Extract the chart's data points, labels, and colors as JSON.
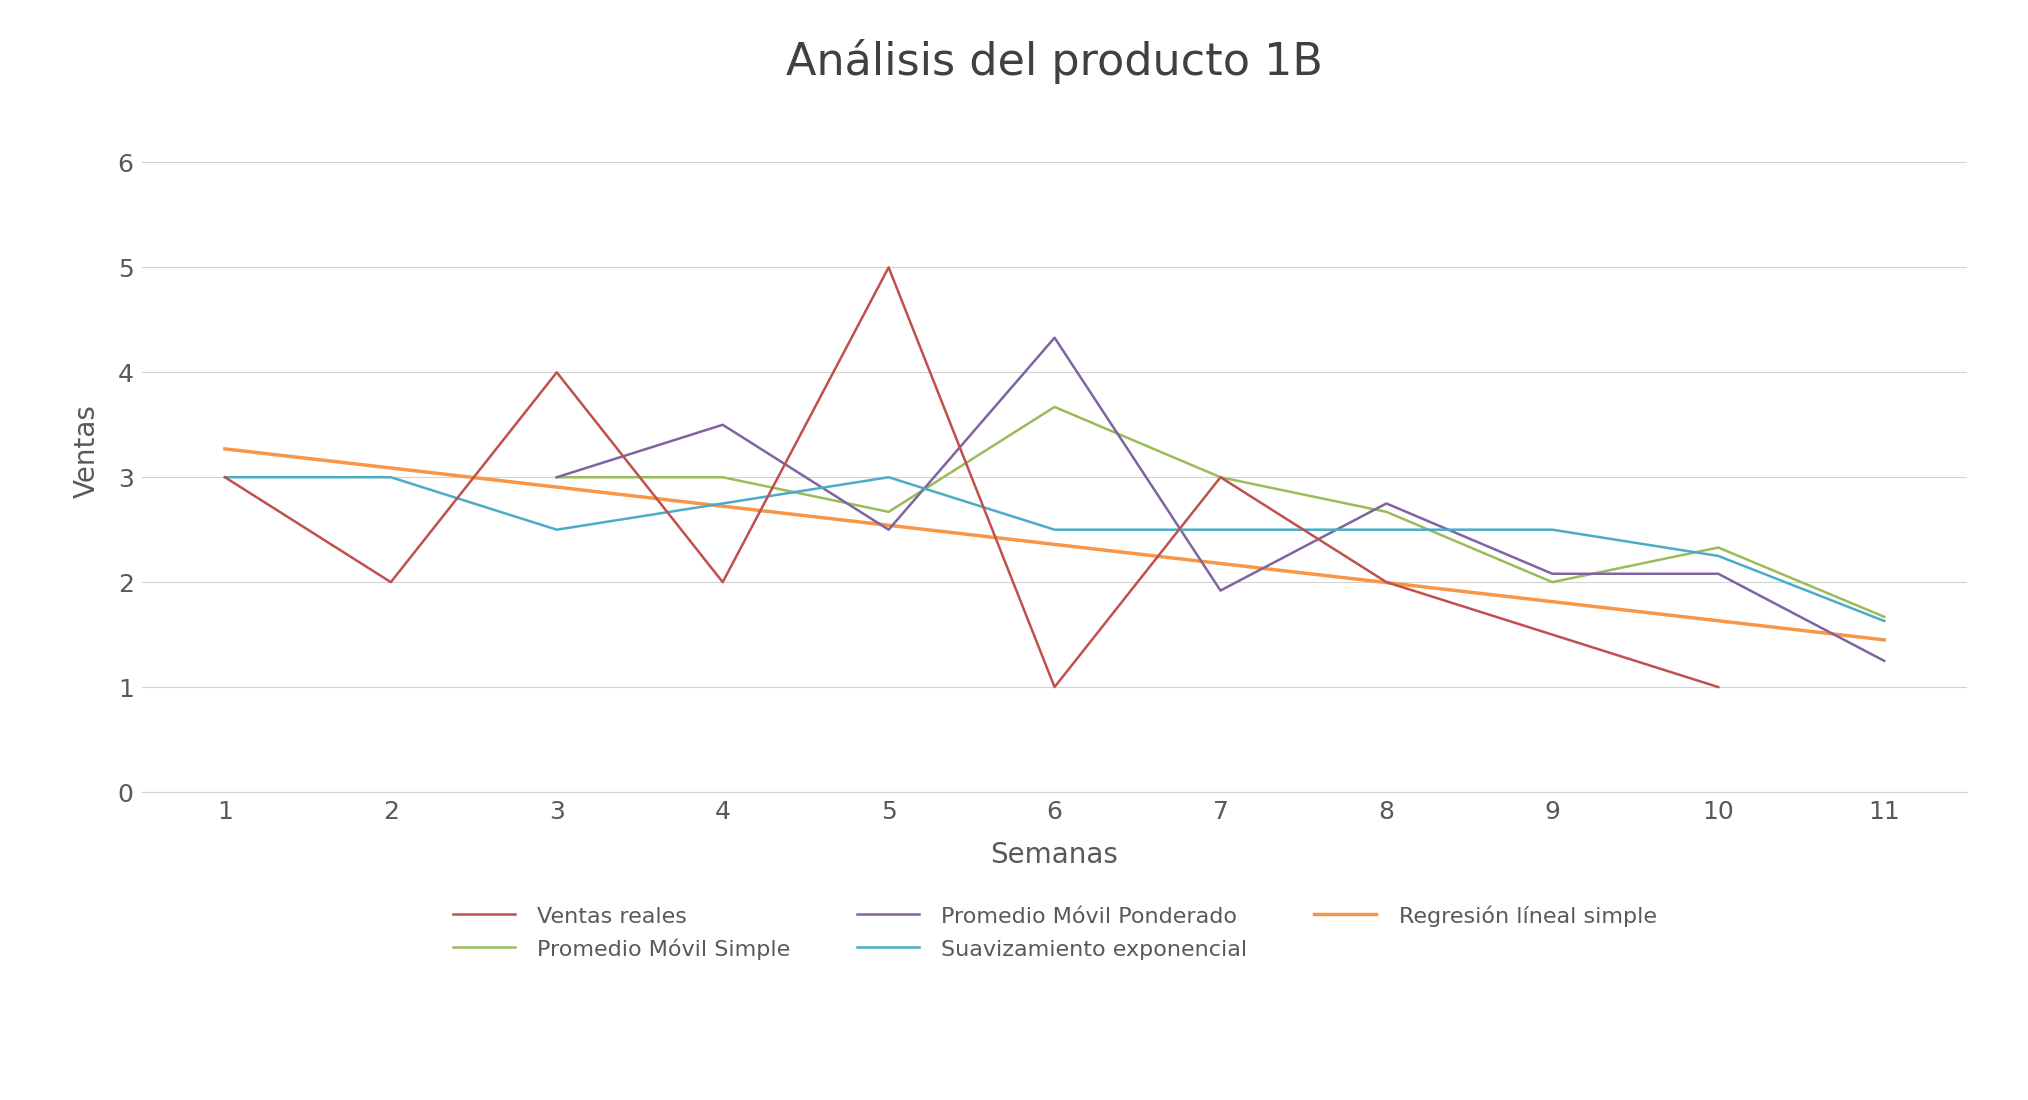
{
  "title": "Análisis del producto 1B",
  "xlabel": "Semanas",
  "ylabel": "Ventas",
  "xlim": [
    0.5,
    11.5
  ],
  "ylim": [
    0,
    6.5
  ],
  "yticks": [
    0,
    1,
    2,
    3,
    4,
    5,
    6
  ],
  "xticks": [
    1,
    2,
    3,
    4,
    5,
    6,
    7,
    8,
    9,
    10,
    11
  ],
  "background_color": "#ffffff",
  "series": [
    {
      "key": "ventas_reales",
      "x": [
        1,
        2,
        3,
        4,
        5,
        6,
        7,
        8,
        10
      ],
      "y": [
        3.0,
        2.0,
        4.0,
        2.0,
        5.0,
        1.0,
        3.0,
        2.0,
        1.0
      ],
      "color": "#c0504d",
      "label": "Ventas reales",
      "linewidth": 1.8,
      "zorder": 3
    },
    {
      "key": "promedio_movil_simple",
      "x": [
        3,
        4,
        5,
        6,
        7,
        8,
        9,
        10,
        11
      ],
      "y": [
        3.0,
        3.0,
        2.67,
        3.67,
        3.0,
        2.67,
        2.0,
        2.33,
        1.67
      ],
      "color": "#9bbb59",
      "label": "Promedio Móvil Simple",
      "linewidth": 1.8,
      "zorder": 2
    },
    {
      "key": "promedio_movil_ponderado",
      "x": [
        3,
        4,
        5,
        6,
        7,
        8,
        9,
        10,
        11
      ],
      "y": [
        3.0,
        3.5,
        2.5,
        4.33,
        1.92,
        2.75,
        2.08,
        2.08,
        1.25
      ],
      "color": "#8064a2",
      "label": "Promedio Móvil Ponderado",
      "linewidth": 1.8,
      "zorder": 2
    },
    {
      "key": "suavizamiento_exponencial",
      "x": [
        1,
        2,
        3,
        4,
        5,
        6,
        7,
        8,
        9,
        10,
        11
      ],
      "y": [
        3.0,
        3.0,
        2.5,
        2.75,
        3.0,
        2.5,
        2.5,
        2.5,
        2.5,
        2.25,
        1.63
      ],
      "color": "#4bacc6",
      "label": "Suavizamiento exponencial",
      "linewidth": 1.8,
      "zorder": 2
    },
    {
      "key": "regresion_lineal",
      "x": [
        1,
        11
      ],
      "y": [
        3.27,
        1.45
      ],
      "color": "#f79646",
      "label": "Regresión líneal simple",
      "linewidth": 2.5,
      "zorder": 1
    }
  ],
  "legend_order": [
    0,
    1,
    2,
    3,
    4
  ],
  "title_fontsize": 32,
  "axis_label_fontsize": 20,
  "tick_fontsize": 18,
  "legend_fontsize": 16,
  "title_color": "#404040",
  "axis_color": "#595959"
}
